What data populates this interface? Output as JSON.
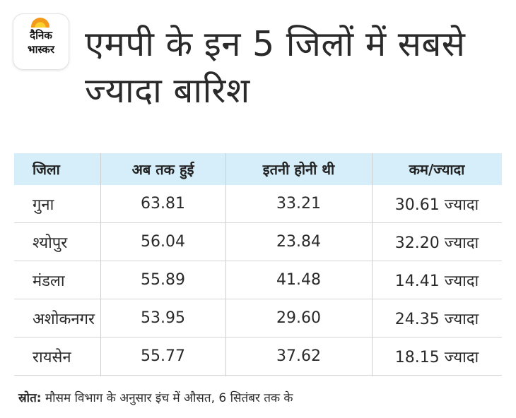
{
  "logo": {
    "line1": "दैनिक",
    "line2": "भास्कर"
  },
  "title": "एमपी के इन 5 जिलों में सबसे ज्यादा बारिश",
  "table": {
    "headers": [
      "जिला",
      "अब तक हुई",
      "इतनी होनी थी",
      "कम/ज्यादा"
    ],
    "rows": [
      [
        "गुना",
        "63.81",
        "33.21",
        "30.61 ज्यादा"
      ],
      [
        "श्योपुर",
        "56.04",
        "23.84",
        "32.20 ज्यादा"
      ],
      [
        "मंडला",
        "55.89",
        "41.48",
        "14.41 ज्यादा"
      ],
      [
        "अशोकनगर",
        "53.95",
        "29.60",
        "24.35 ज्यादा"
      ],
      [
        "रायसेन",
        "55.77",
        "37.62",
        "18.15 ज्यादा"
      ]
    ]
  },
  "source": {
    "label": "स्रोत:",
    "text": " मौसम विभाग के अनुसार इंच में औसत, 6 सितंबर तक के"
  },
  "colors": {
    "header_bg": "#d6eefa",
    "logo_sun": "#f39a1a"
  }
}
